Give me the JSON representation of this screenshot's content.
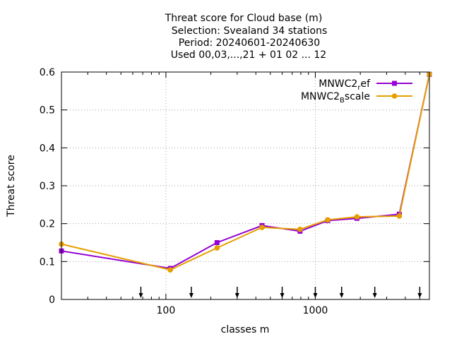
{
  "title_lines": [
    "Threat score  for Cloud base (m)",
    "Selection: Svealand     34 stations",
    "Period: 20240601-20240630",
    "Used 00,03,...,21 + 01 02 ... 12"
  ],
  "chart_data": {
    "type": "line",
    "xscale": "log",
    "xlim": [
      20,
      5800
    ],
    "ylim": [
      0,
      0.6
    ],
    "xlabel": "classes m",
    "ylabel": "Threat score",
    "x_ticks": [
      100,
      1000
    ],
    "x_tick_labels": [
      "100",
      "1000"
    ],
    "y_ticks": [
      0,
      0.1,
      0.2,
      0.3,
      0.4,
      0.5,
      0.6
    ],
    "y_tick_labels": [
      "0",
      "0.1",
      "0.2",
      "0.3",
      "0.4",
      "0.5",
      "0.6"
    ],
    "grid": true,
    "legend_position": "top-right",
    "class_boundaries": [
      68,
      148,
      300,
      600,
      1000,
      1500,
      2500,
      5000
    ],
    "series": [
      {
        "name": "MNWC2_ref",
        "name_main": "MNWC2",
        "name_sub": "r",
        "name_rest": "ef",
        "color": "#9400d3",
        "marker": "square",
        "x": [
          20,
          107,
          220,
          440,
          790,
          1210,
          1900,
          3650,
          5800
        ],
        "y": [
          0.128,
          0.082,
          0.15,
          0.195,
          0.18,
          0.208,
          0.214,
          0.225,
          0.594
        ]
      },
      {
        "name": "MNWC2_Bscale",
        "name_main": "MNWC2",
        "name_sub": "B",
        "name_rest": "scale",
        "color": "#e69f00",
        "marker": "circle",
        "x": [
          20,
          107,
          220,
          440,
          790,
          1210,
          1900,
          3650,
          5800
        ],
        "y": [
          0.146,
          0.078,
          0.136,
          0.19,
          0.185,
          0.21,
          0.218,
          0.22,
          0.594
        ]
      }
    ]
  }
}
